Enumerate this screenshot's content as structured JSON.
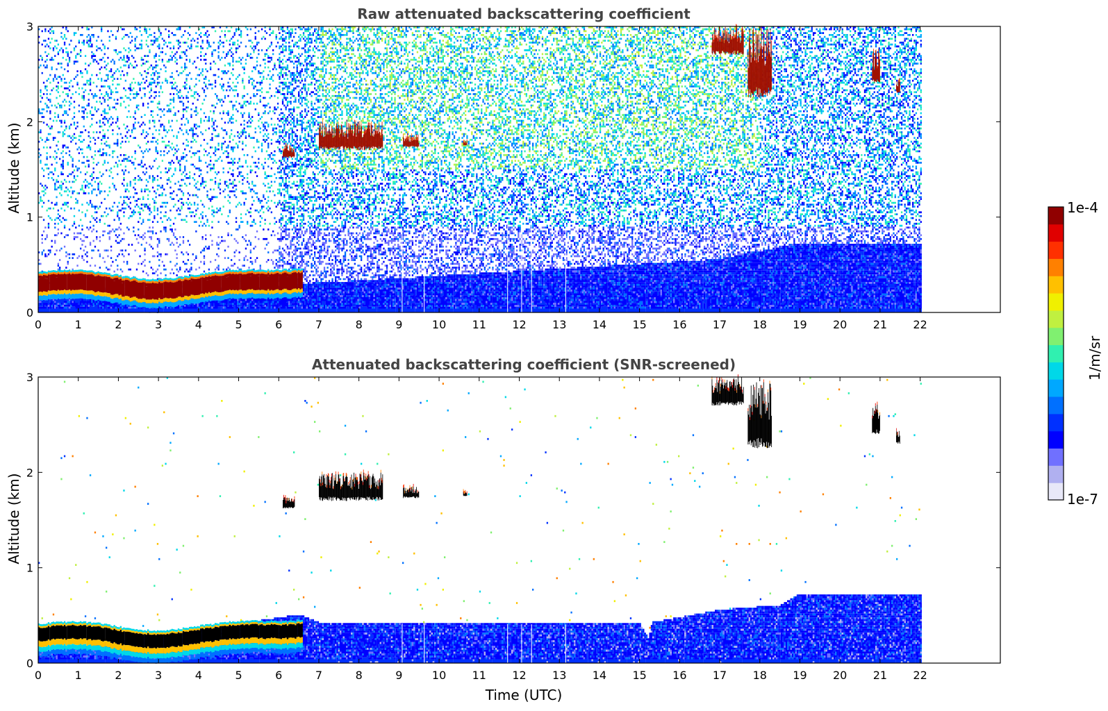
{
  "colors": {
    "scale": [
      "#e8e8f8",
      "#b0b0f0",
      "#7070ff",
      "#0000ff",
      "#0030ff",
      "#0070ff",
      "#00a8ff",
      "#00d8e8",
      "#30f0b0",
      "#80f070",
      "#c0f040",
      "#f0f000",
      "#ffc000",
      "#ff8000",
      "#ff3000",
      "#e00000",
      "#900000"
    ],
    "cloud_raw": "#a01000",
    "cloud_screened": "#000000",
    "axes": "#000000",
    "title": "#444444"
  },
  "chart_data": [
    {
      "type": "heatmap",
      "title": "Raw attenuated backscattering coefficient",
      "ylabel": "Altitude (km)",
      "xlabel": "",
      "xlim": [
        0,
        24
      ],
      "ylim": [
        0,
        3
      ],
      "data_xmax": 22,
      "xticks": [
        "0",
        "1",
        "2",
        "3",
        "4",
        "5",
        "6",
        "7",
        "8",
        "9",
        "10",
        "11",
        "12",
        "13",
        "14",
        "15",
        "16",
        "17",
        "18",
        "19",
        "20",
        "21",
        "22"
      ],
      "yticks": [
        "0",
        "1",
        "2",
        "3"
      ],
      "features": {
        "boundary_layer_aerosol": {
          "t_start": 0,
          "t_end": 6.6,
          "altitude_km": [
            0.12,
            0.45
          ]
        },
        "background_aerosol_top_km": [
          [
            0,
            0.08
          ],
          [
            7,
            0.3
          ],
          [
            17,
            0.55
          ],
          [
            19,
            0.72
          ],
          [
            22,
            0.72
          ]
        ],
        "clouds": [
          {
            "t": [
              6.1,
              6.4
            ],
            "altitude_km": [
              1.62,
              1.75
            ]
          },
          {
            "t": [
              7.0,
              8.6
            ],
            "altitude_km": [
              1.7,
              2.0
            ]
          },
          {
            "t": [
              9.1,
              9.5
            ],
            "altitude_km": [
              1.73,
              1.85
            ]
          },
          {
            "t": [
              10.6,
              10.7
            ],
            "altitude_km": [
              1.75,
              1.8
            ]
          },
          {
            "t": [
              16.8,
              17.6
            ],
            "altitude_km": [
              2.7,
              3.0
            ]
          },
          {
            "t": [
              17.7,
              18.3
            ],
            "altitude_km": [
              2.25,
              3.0
            ]
          },
          {
            "t": [
              20.8,
              21.0
            ],
            "altitude_km": [
              2.4,
              2.75
            ]
          },
          {
            "t": [
              21.4,
              21.5
            ],
            "altitude_km": [
              2.3,
              2.45
            ]
          }
        ],
        "noise": "dense"
      }
    },
    {
      "type": "heatmap",
      "title": "Attenuated backscattering coefficient (SNR-screened)",
      "ylabel": "Altitude (km)",
      "xlabel": "Time (UTC)",
      "xlim": [
        0,
        24
      ],
      "ylim": [
        0,
        3
      ],
      "data_xmax": 22,
      "xticks": [
        "0",
        "1",
        "2",
        "3",
        "4",
        "5",
        "6",
        "7",
        "8",
        "9",
        "10",
        "11",
        "12",
        "13",
        "14",
        "15",
        "16",
        "17",
        "18",
        "19",
        "20",
        "21",
        "22"
      ],
      "yticks": [
        "0",
        "1",
        "2",
        "3"
      ],
      "features": {
        "boundary_layer_aerosol": {
          "t_start": 0,
          "t_end": 6.6,
          "altitude_km": [
            0.12,
            0.45
          ]
        },
        "background_aerosol_top_km": [
          [
            0,
            0.1
          ],
          [
            6.5,
            0.5
          ],
          [
            7,
            0.42
          ],
          [
            15,
            0.4
          ],
          [
            15.2,
            0.25
          ],
          [
            15.3,
            0.42
          ],
          [
            17,
            0.55
          ],
          [
            18.5,
            0.6
          ],
          [
            19,
            0.72
          ],
          [
            22,
            0.72
          ]
        ],
        "clouds": [
          {
            "t": [
              6.1,
              6.4
            ],
            "altitude_km": [
              1.62,
              1.75
            ]
          },
          {
            "t": [
              7.0,
              8.6
            ],
            "altitude_km": [
              1.7,
              2.0
            ]
          },
          {
            "t": [
              9.1,
              9.5
            ],
            "altitude_km": [
              1.73,
              1.85
            ]
          },
          {
            "t": [
              10.6,
              10.7
            ],
            "altitude_km": [
              1.75,
              1.8
            ]
          },
          {
            "t": [
              16.8,
              17.6
            ],
            "altitude_km": [
              2.7,
              3.0
            ]
          },
          {
            "t": [
              17.7,
              18.3
            ],
            "altitude_km": [
              2.25,
              3.0
            ]
          },
          {
            "t": [
              20.8,
              21.0
            ],
            "altitude_km": [
              2.4,
              2.75
            ]
          },
          {
            "t": [
              21.4,
              21.5
            ],
            "altitude_km": [
              2.3,
              2.45
            ]
          }
        ],
        "noise": "sparse"
      }
    }
  ],
  "colorbar": {
    "max_label": "1e-4",
    "min_label": "1e-7",
    "unit_label": "1/m/sr"
  }
}
